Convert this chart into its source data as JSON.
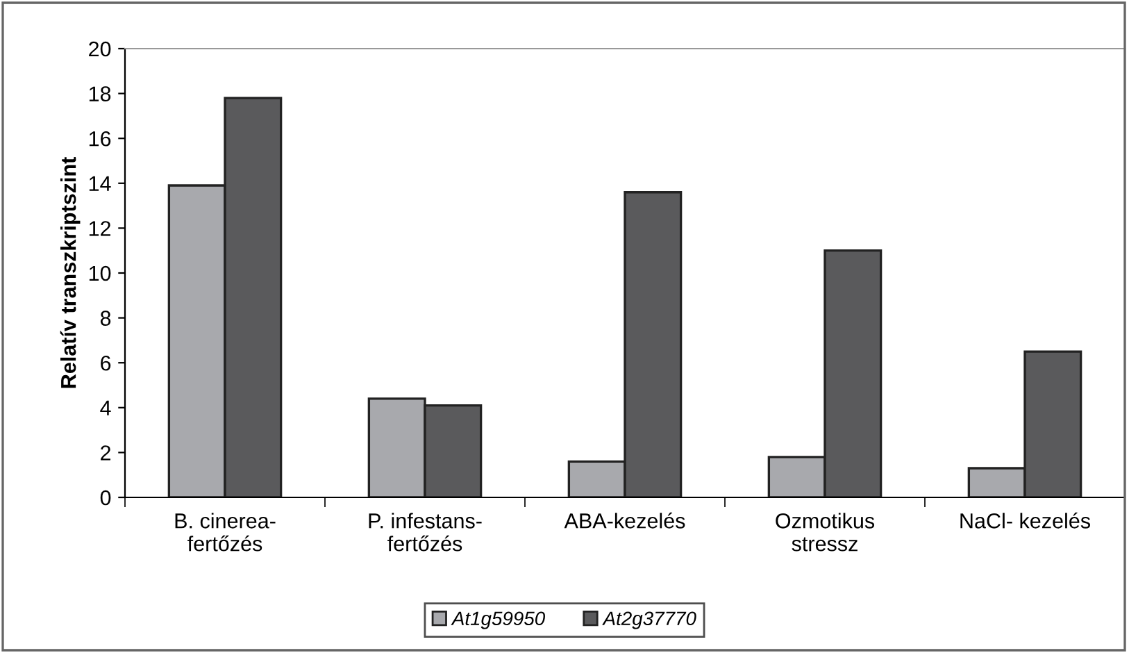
{
  "chart_data": {
    "type": "bar",
    "ylabel": "Relatív transzkriptszint",
    "categories": [
      "B. cinerea-\nfertőzés",
      "P. infestans-\nfertőzés",
      "ABA-kezelés",
      "Ozmotikus\nstressz",
      "NaCl- kezelés"
    ],
    "series": [
      {
        "name": "At1g59950",
        "color": "#a8a9ad",
        "values": [
          13.9,
          4.4,
          1.6,
          1.8,
          1.3
        ]
      },
      {
        "name": "At2g37770",
        "color": "#5a5a5c",
        "values": [
          17.8,
          4.1,
          13.6,
          11.0,
          6.5
        ]
      }
    ],
    "ylim": [
      0,
      20
    ],
    "yticks": [
      0,
      2,
      4,
      6,
      8,
      10,
      12,
      14,
      16,
      18,
      20
    ],
    "grid": false,
    "legend": "bottom"
  }
}
